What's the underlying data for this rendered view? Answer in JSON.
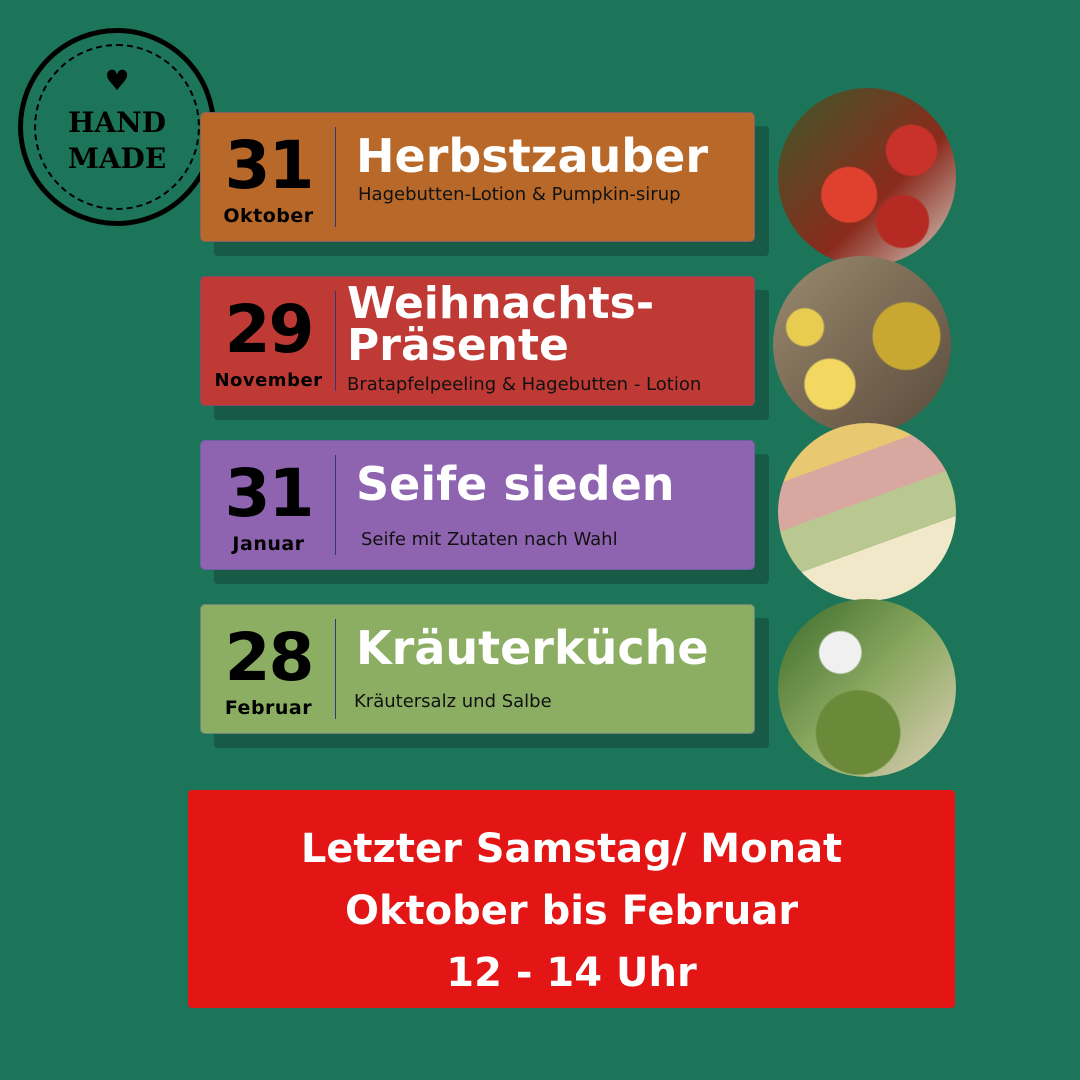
{
  "stamp": {
    "line1": "HAND",
    "line2": "MADE",
    "icon": "heart-icon"
  },
  "events": [
    {
      "day": "31",
      "month": "Oktober",
      "title": "Herbstzauber",
      "subtitle": "Hagebutten-Lotion & Pumpkin-sirup",
      "color": "#b8692a"
    },
    {
      "day": "29",
      "month": "November",
      "title_line1": "Weihnachts-",
      "title_line2": "Präsente",
      "subtitle": "Bratapfelpeeling & Hagebutten - Lotion",
      "color": "#c03a35"
    },
    {
      "day": "31",
      "month": "Januar",
      "title": "Seife sieden",
      "subtitle": "Seife mit Zutaten nach Wahl",
      "color": "#8e63b0"
    },
    {
      "day": "28",
      "month": "Februar",
      "title": "Kräuterküche",
      "subtitle": "Kräutersalz und Salbe",
      "color": "#8cae63"
    }
  ],
  "banner": {
    "line1": "Letzter Samstag/ Monat",
    "line2": "Oktober bis Februar",
    "line3": "12 - 14 Uhr",
    "color": "#e31515"
  }
}
